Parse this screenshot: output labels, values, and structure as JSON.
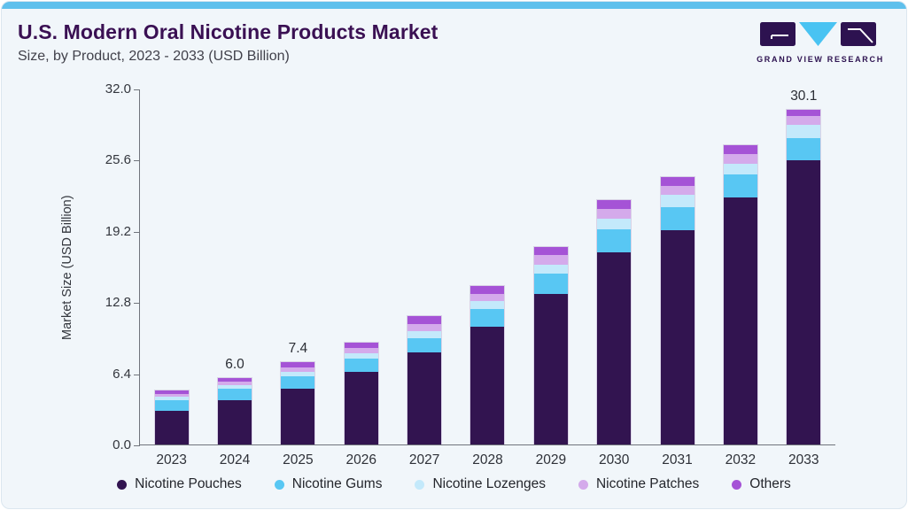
{
  "page": {
    "accent_color": "#5fc0ec",
    "card_background": "#f1f6fa",
    "title_color": "#3a1053"
  },
  "header": {
    "title": "U.S. Modern Oral Nicotine Products Market",
    "subtitle": "Size, by Product, 2023 - 2033 (USD Billion)",
    "logo_text": "GRAND VIEW RESEARCH",
    "logo_colors": {
      "square": "#2d1250",
      "triangle": "#49c3f2"
    }
  },
  "chart_data": {
    "type": "bar",
    "stacked": true,
    "grid": false,
    "legend_position": "bottom",
    "ylabel": "Market Size (USD Billion)",
    "ylim": [
      0,
      32
    ],
    "ytick_labels": [
      "0.0",
      "6.4",
      "12.8",
      "19.2",
      "25.6",
      "32.0"
    ],
    "categories": [
      "2023",
      "2024",
      "2025",
      "2026",
      "2027",
      "2028",
      "2029",
      "2030",
      "2031",
      "2032",
      "2033"
    ],
    "series": [
      {
        "name": "Nicotine Pouches",
        "color": "#321450",
        "values": [
          3.05,
          4.0,
          5.05,
          6.5,
          8.3,
          10.6,
          13.5,
          17.3,
          19.3,
          22.2,
          25.54
        ]
      },
      {
        "name": "Nicotine Gums",
        "color": "#58c7f3",
        "values": [
          0.95,
          1.0,
          1.1,
          1.25,
          1.25,
          1.55,
          1.9,
          2.05,
          2.0,
          2.05,
          2.04
        ]
      },
      {
        "name": "Nicotine Lozenges",
        "color": "#c3e9fb",
        "values": [
          0.27,
          0.31,
          0.39,
          0.47,
          0.63,
          0.74,
          0.8,
          0.97,
          1.13,
          0.97,
          1.19
        ]
      },
      {
        "name": "Nicotine Patches",
        "color": "#d4aaeb",
        "values": [
          0.31,
          0.36,
          0.42,
          0.43,
          0.68,
          0.64,
          0.8,
          0.87,
          0.8,
          0.87,
          0.75
        ]
      },
      {
        "name": "Others",
        "color": "#a553d6",
        "values": [
          0.32,
          0.33,
          0.44,
          0.47,
          0.7,
          0.73,
          0.72,
          0.8,
          0.8,
          0.8,
          0.58
        ]
      }
    ],
    "bar_labels": {
      "2024": "6.0",
      "2025": "7.4",
      "2033": "30.1"
    },
    "axis_color": "#70747c",
    "tick_text_color": "#33363d"
  }
}
